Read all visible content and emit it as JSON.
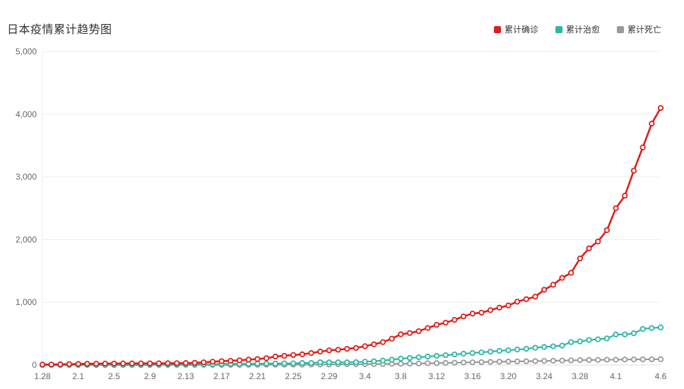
{
  "title": "日本疫情累计趋势图",
  "legend": [
    {
      "id": "confirmed",
      "label": "累计确诊",
      "color": "#e01e19"
    },
    {
      "id": "cured",
      "label": "累计治愈",
      "color": "#2ab7a3"
    },
    {
      "id": "deaths",
      "label": "累计死亡",
      "color": "#999999"
    }
  ],
  "colors": {
    "title_text": "#333333",
    "axis_label": "#666666",
    "gridline": "#eeeeee",
    "axis_line": "#dddddd",
    "marker_fill": "#ffffff"
  },
  "chart_data": {
    "type": "line",
    "title": "日本疫情累计趋势图",
    "xlabel": "",
    "ylabel": "",
    "ylim": [
      0,
      5000
    ],
    "grid": true,
    "legend_position": "top-right",
    "marker_style": "hollow-circle",
    "x_label_interval": 4,
    "x": [
      "1.28",
      "1.29",
      "1.30",
      "1.31",
      "2.1",
      "2.2",
      "2.3",
      "2.4",
      "2.5",
      "2.6",
      "2.7",
      "2.8",
      "2.9",
      "2.10",
      "2.11",
      "2.12",
      "2.13",
      "2.14",
      "2.15",
      "2.16",
      "2.17",
      "2.18",
      "2.19",
      "2.20",
      "2.21",
      "2.22",
      "2.23",
      "2.24",
      "2.25",
      "2.26",
      "2.27",
      "2.28",
      "2.29",
      "3.1",
      "3.2",
      "3.3",
      "3.4",
      "3.5",
      "3.6",
      "3.7",
      "3.8",
      "3.9",
      "3.10",
      "3.11",
      "3.12",
      "3.13",
      "3.14",
      "3.15",
      "3.16",
      "3.17",
      "3.18",
      "3.19",
      "3.20",
      "3.21",
      "3.22",
      "3.23",
      "3.24",
      "3.25",
      "3.26",
      "3.27",
      "3.28",
      "3.29",
      "3.30",
      "3.31",
      "4.1",
      "4.2",
      "4.3",
      "4.4",
      "4.5",
      "4.6"
    ],
    "x_labels_visible": [
      "1.28",
      "2.1",
      "2.5",
      "2.9",
      "2.13",
      "2.17",
      "2.21",
      "2.25",
      "2.29",
      "3.4",
      "3.8",
      "3.12",
      "3.16",
      "3.20",
      "3.24",
      "3.28",
      "4.1",
      "4.6"
    ],
    "yticks": [
      "0",
      "1,000",
      "2,000",
      "3,000",
      "4,000",
      "5,000"
    ],
    "series": [
      {
        "id": "confirmed",
        "name": "累计确诊",
        "color": "#e01e19",
        "values": [
          7,
          8,
          11,
          14,
          17,
          20,
          20,
          23,
          23,
          25,
          25,
          26,
          26,
          27,
          28,
          29,
          31,
          35,
          43,
          53,
          61,
          67,
          75,
          86,
          95,
          108,
          135,
          147,
          160,
          170,
          190,
          214,
          233,
          243,
          258,
          272,
          300,
          330,
          365,
          420,
          490,
          510,
          540,
          590,
          640,
          675,
          720,
          775,
          820,
          835,
          875,
          915,
          950,
          1010,
          1050,
          1090,
          1200,
          1280,
          1390,
          1470,
          1700,
          1860,
          1970,
          2150,
          2500,
          2700,
          3100,
          3470,
          3850,
          4100
        ]
      },
      {
        "id": "cured",
        "name": "累计治愈",
        "color": "#2ab7a3",
        "values": [
          1,
          1,
          1,
          1,
          1,
          1,
          1,
          1,
          1,
          1,
          4,
          4,
          9,
          9,
          9,
          12,
          12,
          12,
          12,
          12,
          18,
          18,
          18,
          18,
          22,
          22,
          23,
          26,
          27,
          32,
          32,
          43,
          43,
          43,
          43,
          46,
          53,
          60,
          70,
          85,
          101,
          112,
          124,
          135,
          146,
          157,
          168,
          180,
          191,
          202,
          213,
          225,
          236,
          247,
          258,
          275,
          287,
          298,
          310,
          365,
          376,
          399,
          410,
          424,
          487,
          487,
          505,
          575,
          590,
          600
        ]
      },
      {
        "id": "deaths",
        "name": "累计死亡",
        "color": "#999999",
        "values": [
          0,
          0,
          0,
          0,
          0,
          0,
          0,
          0,
          0,
          0,
          0,
          0,
          0,
          0,
          0,
          0,
          1,
          1,
          1,
          1,
          1,
          1,
          1,
          3,
          3,
          5,
          5,
          5,
          6,
          6,
          7,
          8,
          8,
          12,
          12,
          12,
          12,
          14,
          16,
          18,
          20,
          22,
          24,
          28,
          30,
          33,
          36,
          40,
          43,
          46,
          49,
          52,
          55,
          57,
          59,
          62,
          65,
          68,
          71,
          74,
          77,
          80,
          82,
          84,
          85,
          87,
          89,
          90,
          91,
          92
        ]
      }
    ]
  }
}
